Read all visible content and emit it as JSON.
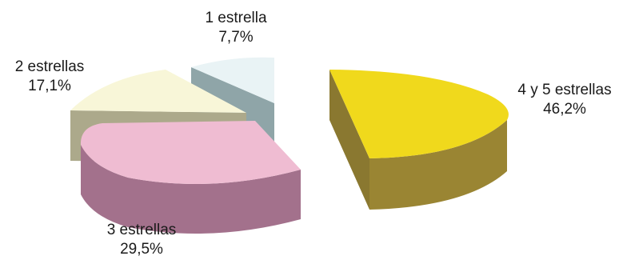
{
  "chart_data": {
    "type": "pie",
    "style": "3d-exploded",
    "title": "",
    "legend": "none",
    "slices": [
      {
        "label": "4 y 5 estrellas",
        "value_label": "46,2%",
        "value": 46.2,
        "color": "#f0d91c",
        "side_color": "#9a8533"
      },
      {
        "label": "3 estrellas",
        "value_label": "29,5%",
        "value": 29.5,
        "color": "#efbcd2",
        "side_color": "#a3718c"
      },
      {
        "label": "2 estrellas",
        "value_label": "17,1%",
        "value": 17.1,
        "color": "#f8f6d8",
        "side_color": "#aca98b"
      },
      {
        "label": "1 estrella",
        "value_label": "7,7%",
        "value": 7.7,
        "color": "#e9f3f5",
        "side_color": "#8fa5a8"
      }
    ]
  }
}
